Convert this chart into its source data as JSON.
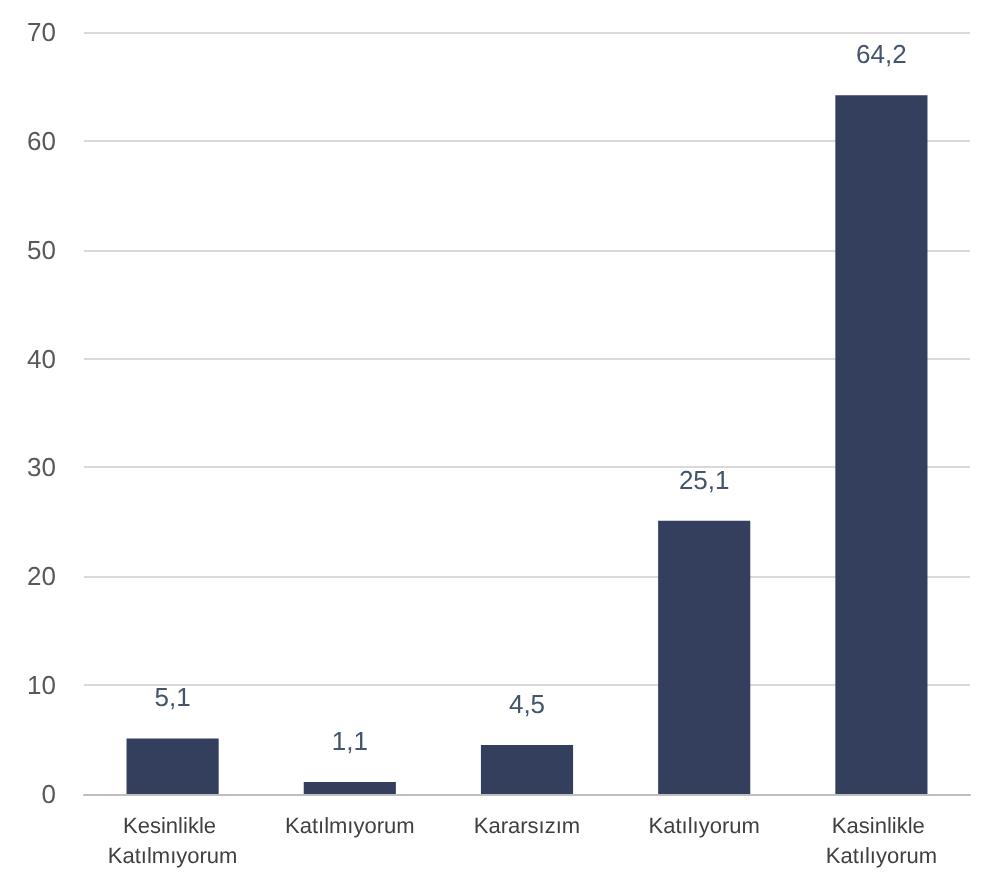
{
  "chart_data": {
    "type": "bar",
    "categories": [
      "Kesinlikle Katılmıyorum",
      "Katılmıyorum",
      "Kararsızım",
      "Katılıyorum",
      "Kasinlikle Katılıyorum"
    ],
    "values": [
      5.1,
      1.1,
      4.5,
      25.1,
      64.2
    ],
    "value_labels": [
      "5,1",
      "1,1",
      "4,5",
      "25,1",
      "64,2"
    ],
    "color": "#333f5c",
    "ylim": [
      0,
      70
    ],
    "yticks": [
      0,
      10,
      20,
      30,
      40,
      50,
      60,
      70
    ],
    "grid": "y"
  }
}
